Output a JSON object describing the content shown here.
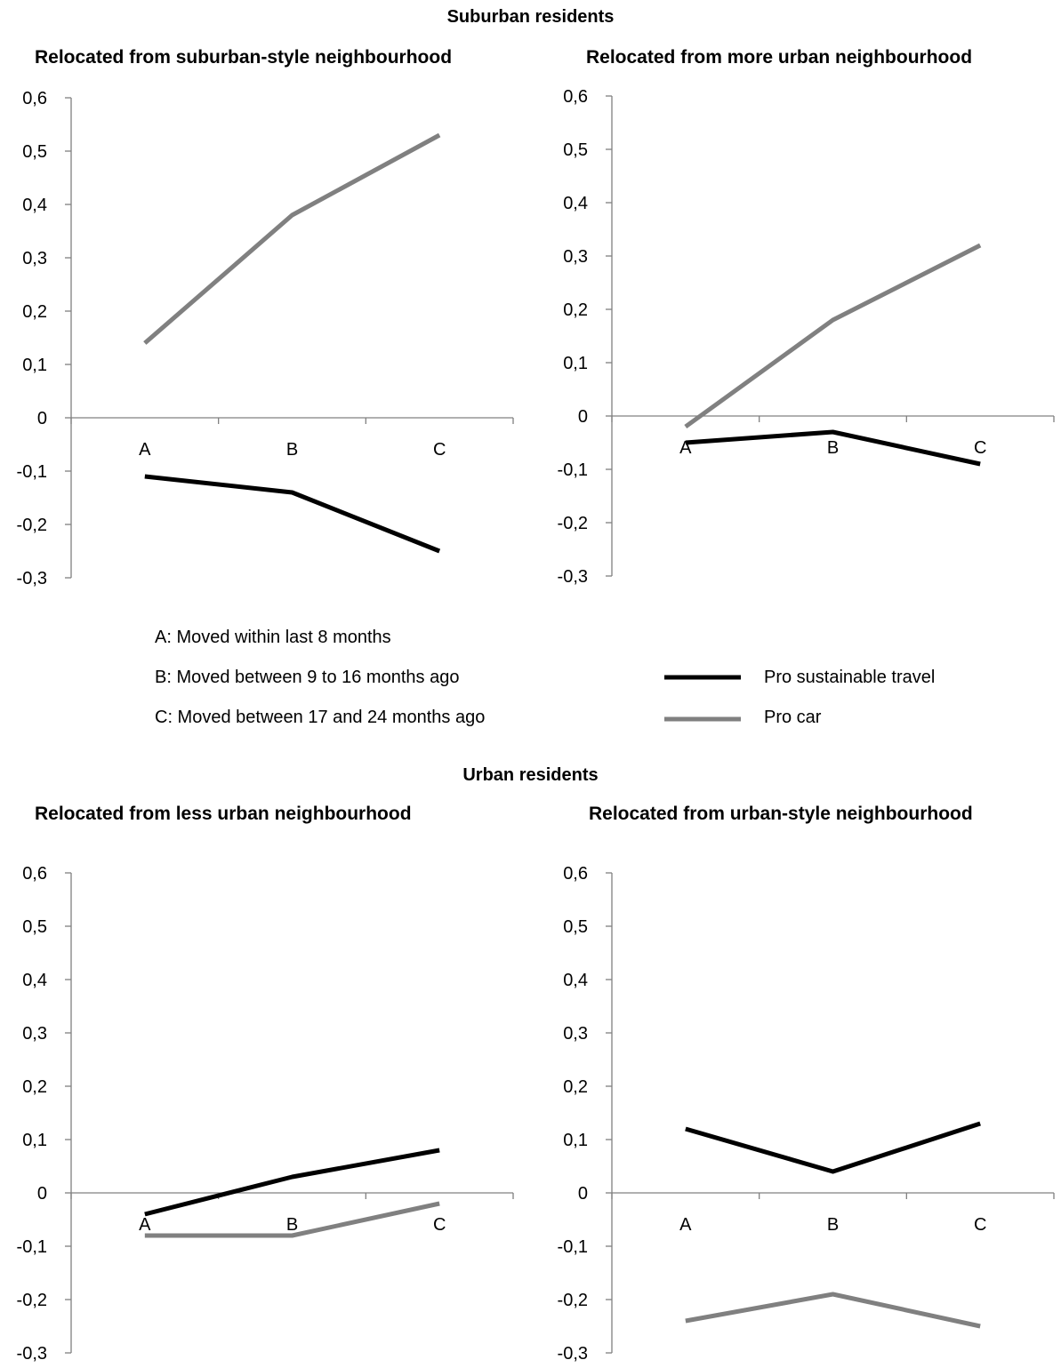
{
  "sections": [
    {
      "title": "Suburban residents"
    },
    {
      "title": "Urban residents"
    }
  ],
  "legend": {
    "definitions": [
      "A: Moved within last 8 months",
      "B: Moved between 9 to 16 months ago",
      "C: Moved between 17 and 24 months ago"
    ],
    "series": [
      {
        "name": "Pro sustainable travel",
        "color": "#000000"
      },
      {
        "name": "Pro car",
        "color": "#808080"
      }
    ]
  },
  "chart_data": [
    {
      "type": "line",
      "title": "Relocated from suburban-style neighbourhood",
      "categories": [
        "A",
        "B",
        "C"
      ],
      "ylim": [
        -0.3,
        0.6
      ],
      "yticks": [
        "-0,3",
        "-0,2",
        "-0,1",
        "0",
        "0,1",
        "0,2",
        "0,3",
        "0,4",
        "0,5",
        "0,6"
      ],
      "series": [
        {
          "name": "Pro sustainable travel",
          "color": "#000000",
          "values": [
            -0.11,
            -0.14,
            -0.25
          ]
        },
        {
          "name": "Pro car",
          "color": "#808080",
          "values": [
            0.14,
            0.38,
            0.53
          ]
        }
      ]
    },
    {
      "type": "line",
      "title": "Relocated from more urban neighbourhood",
      "categories": [
        "A",
        "B",
        "C"
      ],
      "ylim": [
        -0.3,
        0.6
      ],
      "yticks": [
        "-0,3",
        "-0,2",
        "-0,1",
        "0",
        "0,1",
        "0,2",
        "0,3",
        "0,4",
        "0,5",
        "0,6"
      ],
      "series": [
        {
          "name": "Pro sustainable travel",
          "color": "#000000",
          "values": [
            -0.05,
            -0.03,
            -0.09
          ]
        },
        {
          "name": "Pro car",
          "color": "#808080",
          "values": [
            -0.02,
            0.18,
            0.32
          ]
        }
      ]
    },
    {
      "type": "line",
      "title": "Relocated from less urban neighbourhood",
      "categories": [
        "A",
        "B",
        "C"
      ],
      "ylim": [
        -0.3,
        0.6
      ],
      "yticks": [
        "-0,3",
        "-0,2",
        "-0,1",
        "0",
        "0,1",
        "0,2",
        "0,3",
        "0,4",
        "0,5",
        "0,6"
      ],
      "series": [
        {
          "name": "Pro sustainable travel",
          "color": "#000000",
          "values": [
            -0.04,
            0.03,
            0.08
          ]
        },
        {
          "name": "Pro car",
          "color": "#808080",
          "values": [
            -0.08,
            -0.08,
            -0.02
          ]
        }
      ]
    },
    {
      "type": "line",
      "title": "Relocated from urban-style neighbourhood",
      "categories": [
        "A",
        "B",
        "C"
      ],
      "ylim": [
        -0.3,
        0.6
      ],
      "yticks": [
        "-0,3",
        "-0,2",
        "-0,1",
        "0",
        "0,1",
        "0,2",
        "0,3",
        "0,4",
        "0,5",
        "0,6"
      ],
      "series": [
        {
          "name": "Pro sustainable travel",
          "color": "#000000",
          "values": [
            0.12,
            0.04,
            0.13
          ]
        },
        {
          "name": "Pro car",
          "color": "#808080",
          "values": [
            -0.24,
            -0.19,
            -0.25
          ]
        }
      ]
    }
  ]
}
